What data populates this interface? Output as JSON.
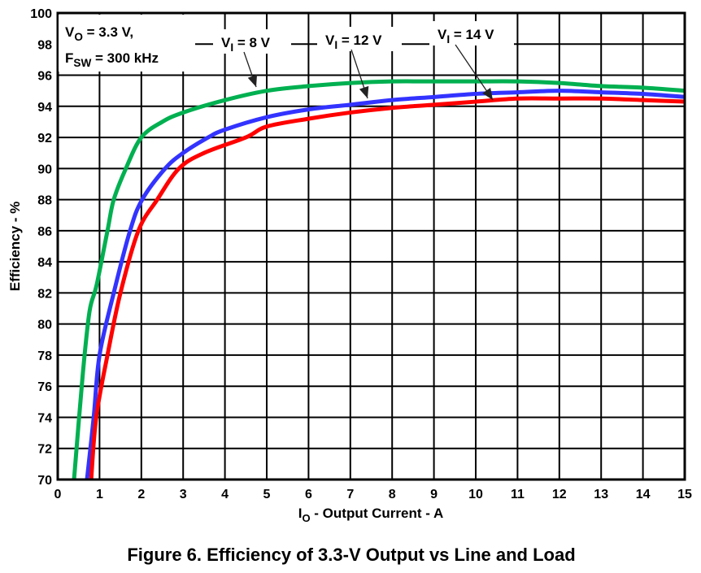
{
  "chart_data": {
    "type": "line",
    "title": "Figure 6. Efficiency of 3.3-V Output vs Line and Load",
    "xlabel": {
      "main": "I",
      "sub": "O",
      "rest": " - Output Current - A"
    },
    "ylabel": "Efficiency - %",
    "xlim": [
      0,
      15
    ],
    "ylim": [
      70,
      100
    ],
    "grid": true,
    "xticks": [
      "0",
      "1",
      "2",
      "3",
      "4",
      "5",
      "6",
      "7",
      "8",
      "9",
      "10",
      "11",
      "12",
      "13",
      "14",
      "15"
    ],
    "yticks": [
      "70",
      "72",
      "74",
      "76",
      "78",
      "80",
      "82",
      "84",
      "86",
      "88",
      "90",
      "92",
      "94",
      "96",
      "98",
      "100"
    ],
    "conditions": [
      {
        "main": "V",
        "sub": "O",
        "rest": " = 3.3 V,"
      },
      {
        "main": "F",
        "sub": "SW",
        "rest": " = 300 kHz"
      }
    ],
    "series": [
      {
        "name": "VI = 8 V",
        "label": {
          "main": "V",
          "sub": "I",
          "rest": " = 8 V"
        },
        "color": "#00b050",
        "x": [
          0.39,
          0.6,
          0.76,
          0.93,
          1.19,
          1.34,
          1.63,
          2.0,
          2.5,
          3,
          4,
          5,
          6,
          7,
          8,
          9,
          10,
          11,
          12,
          13,
          14,
          15
        ],
        "y": [
          70,
          76.8,
          80.8,
          82.5,
          86,
          88,
          90,
          92,
          93,
          93.6,
          94.4,
          95.0,
          95.3,
          95.5,
          95.6,
          95.6,
          95.6,
          95.6,
          95.5,
          95.3,
          95.2,
          95.0
        ]
      },
      {
        "name": "VI = 12 V",
        "label": {
          "main": "V",
          "sub": "I",
          "rest": " = 12 V"
        },
        "color": "#3333ff",
        "x": [
          0.7,
          0.86,
          1.0,
          1.34,
          1.73,
          2.02,
          2.57,
          3,
          3.6,
          4,
          5,
          6,
          7,
          8,
          9,
          10,
          11,
          12,
          13,
          14,
          15
        ],
        "y": [
          70,
          74,
          78,
          82,
          86,
          88,
          90,
          91,
          92,
          92.5,
          93.3,
          93.8,
          94.1,
          94.4,
          94.6,
          94.8,
          94.9,
          95.0,
          94.9,
          94.8,
          94.6
        ]
      },
      {
        "name": "VI = 14 V",
        "label": {
          "main": "V",
          "sub": "I",
          "rest": " = 14 V"
        },
        "color": "#ff0000",
        "x": [
          0.8,
          0.92,
          1.19,
          1.5,
          1.93,
          2.38,
          2.9,
          3.5,
          4.5,
          5,
          6,
          7,
          8,
          9,
          10,
          11,
          12,
          13,
          14,
          15
        ],
        "y": [
          70,
          74,
          78,
          82,
          86,
          88,
          90,
          91,
          92,
          92.7,
          93.2,
          93.6,
          93.9,
          94.1,
          94.3,
          94.5,
          94.5,
          94.5,
          94.4,
          94.3
        ]
      }
    ]
  }
}
